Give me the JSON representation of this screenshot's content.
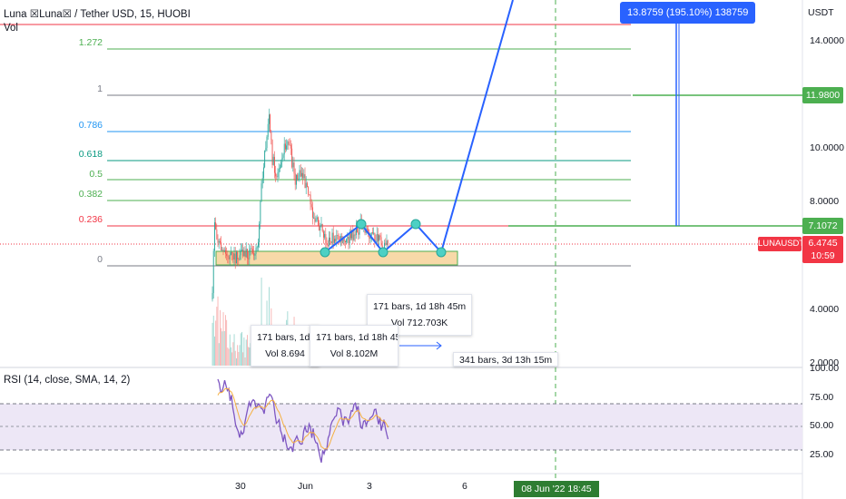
{
  "header": {
    "symbol_title": "Luna ☒Luna☒ / Tether USD, 15, HUOBI",
    "volume_label": "Vol",
    "currency": "USDT"
  },
  "fib_levels": [
    {
      "label": "1.272",
      "color": "#4caf50"
    },
    {
      "label": "1",
      "color": "#787b86"
    },
    {
      "label": "0.786",
      "color": "#2196f3"
    },
    {
      "label": "0.618",
      "color": "#089981"
    },
    {
      "label": "0.5",
      "color": "#4caf50"
    },
    {
      "label": "0.382",
      "color": "#4caf50"
    },
    {
      "label": "0.236",
      "color": "#f23645"
    },
    {
      "label": "0",
      "color": "#787b86"
    }
  ],
  "price_axis": {
    "ticks": [
      "14.0000",
      "10.0000",
      "8.0000",
      "4.0000",
      "2.0000"
    ],
    "tags": [
      {
        "value": "11.9800",
        "color": "#4caf50"
      },
      {
        "value": "7.1072",
        "color": "#4caf50"
      }
    ],
    "symbol_tag": "LUNAUSDT",
    "last_price": "6.4745",
    "countdown": "10:59",
    "last_color": "#f23645"
  },
  "rsi": {
    "label": "RSI (14, close, SMA, 14, 2)",
    "ticks": [
      "100.00",
      "75.00",
      "50.00",
      "25.00"
    ]
  },
  "time_axis": {
    "ticks": [
      "30",
      "Jun",
      "3",
      "6"
    ],
    "cursor_label": "08 Jun '22  18:45",
    "cursor_color": "#2e7d32"
  },
  "measure": {
    "label": "13.8759 (195.10%) 138759",
    "color": "#2962ff"
  },
  "tooltips": [
    {
      "line1": "171 bars, 1d 18h 45m",
      "line2": "Vol 712.703K"
    },
    {
      "line1": "171 bars, 1d 18",
      "line2": "Vol 8.694"
    },
    {
      "line1": "171 bars, 1d 18h 45m",
      "line2": "Vol 8.102M"
    },
    {
      "line1": "341 bars, 3d 13h 15m",
      "line2": ""
    }
  ],
  "colors": {
    "up": "#26a69a",
    "down": "#ef5350",
    "projection": "#2962ff",
    "zone": "#f7d9a8",
    "rsi_band": "#ede7f6",
    "rsi_line": "#7e57c2"
  }
}
